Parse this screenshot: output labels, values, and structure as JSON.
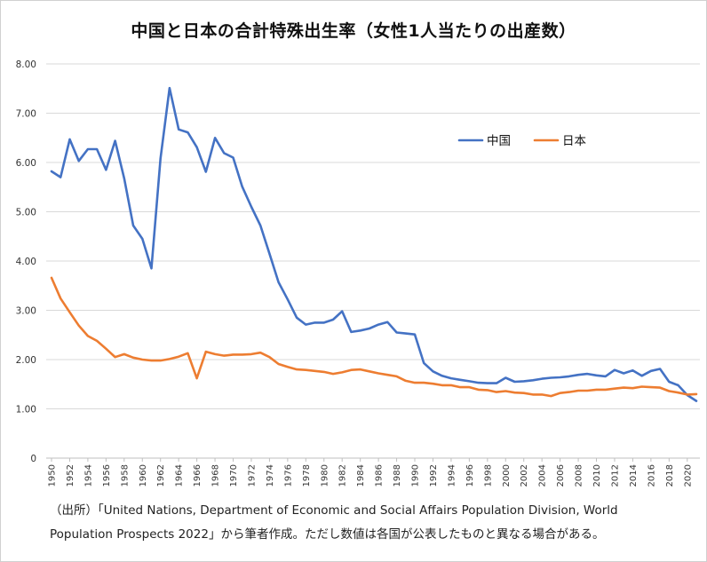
{
  "chart_data": {
    "type": "line",
    "title": "中国と日本の合計特殊出生率（女性1人当たりの出産数）",
    "xlabel": "",
    "ylabel": "",
    "ylim": [
      0,
      8
    ],
    "yticks": [
      "0",
      "1.00",
      "2.00",
      "3.00",
      "4.00",
      "5.00",
      "6.00",
      "7.00",
      "8.00"
    ],
    "xticks": [
      "1950",
      "1952",
      "1954",
      "1956",
      "1958",
      "1960",
      "1962",
      "1964",
      "1966",
      "1968",
      "1970",
      "1972",
      "1974",
      "1976",
      "1978",
      "1980",
      "1982",
      "1984",
      "1986",
      "1988",
      "1990",
      "1992",
      "1994",
      "1996",
      "1998",
      "2000",
      "2002",
      "2004",
      "2006",
      "2008",
      "2010",
      "2012",
      "2014",
      "2016",
      "2018",
      "2020"
    ],
    "x": [
      1950,
      1951,
      1952,
      1953,
      1954,
      1955,
      1956,
      1957,
      1958,
      1959,
      1960,
      1961,
      1962,
      1963,
      1964,
      1965,
      1966,
      1967,
      1968,
      1969,
      1970,
      1971,
      1972,
      1973,
      1974,
      1975,
      1976,
      1977,
      1978,
      1979,
      1980,
      1981,
      1982,
      1983,
      1984,
      1985,
      1986,
      1987,
      1988,
      1989,
      1990,
      1991,
      1992,
      1993,
      1994,
      1995,
      1996,
      1997,
      1998,
      1999,
      2000,
      2001,
      2002,
      2003,
      2004,
      2005,
      2006,
      2007,
      2008,
      2009,
      2010,
      2011,
      2012,
      2013,
      2014,
      2015,
      2016,
      2017,
      2018,
      2019,
      2020,
      2021
    ],
    "series": [
      {
        "name": "中国",
        "color": "#4472C4",
        "values": [
          5.82,
          5.7,
          6.47,
          6.03,
          6.27,
          6.27,
          5.85,
          6.44,
          5.68,
          4.72,
          4.45,
          3.85,
          6.08,
          7.51,
          6.67,
          6.61,
          6.31,
          5.81,
          6.5,
          6.19,
          6.1,
          5.51,
          5.1,
          4.72,
          4.15,
          3.57,
          3.22,
          2.85,
          2.71,
          2.75,
          2.75,
          2.81,
          2.98,
          2.56,
          2.59,
          2.63,
          2.71,
          2.76,
          2.55,
          2.53,
          2.51,
          1.93,
          1.76,
          1.67,
          1.62,
          1.59,
          1.56,
          1.53,
          1.52,
          1.52,
          1.63,
          1.55,
          1.56,
          1.58,
          1.61,
          1.63,
          1.64,
          1.66,
          1.69,
          1.71,
          1.68,
          1.66,
          1.79,
          1.72,
          1.78,
          1.67,
          1.77,
          1.81,
          1.55,
          1.48,
          1.28,
          1.16
        ]
      },
      {
        "name": "日本",
        "color": "#ED7D31",
        "values": [
          3.66,
          3.24,
          2.96,
          2.69,
          2.48,
          2.38,
          2.22,
          2.05,
          2.11,
          2.04,
          2.0,
          1.98,
          1.98,
          2.01,
          2.06,
          2.13,
          1.62,
          2.16,
          2.11,
          2.08,
          2.1,
          2.1,
          2.11,
          2.14,
          2.05,
          1.91,
          1.85,
          1.8,
          1.79,
          1.77,
          1.75,
          1.71,
          1.74,
          1.79,
          1.8,
          1.76,
          1.72,
          1.69,
          1.66,
          1.57,
          1.53,
          1.53,
          1.51,
          1.48,
          1.48,
          1.44,
          1.44,
          1.39,
          1.38,
          1.34,
          1.36,
          1.33,
          1.32,
          1.29,
          1.29,
          1.26,
          1.32,
          1.34,
          1.37,
          1.37,
          1.39,
          1.39,
          1.41,
          1.43,
          1.42,
          1.45,
          1.44,
          1.43,
          1.36,
          1.33,
          1.29,
          1.3
        ]
      }
    ],
    "legend": "upper-right"
  },
  "source_note": {
    "line1": "（出所）「United Nations, Department of Economic and Social Affairs Population Division, World",
    "line2": "Population Prospects 2022」から筆者作成。ただし数値は各国が公表したものと異なる場合がある。"
  }
}
